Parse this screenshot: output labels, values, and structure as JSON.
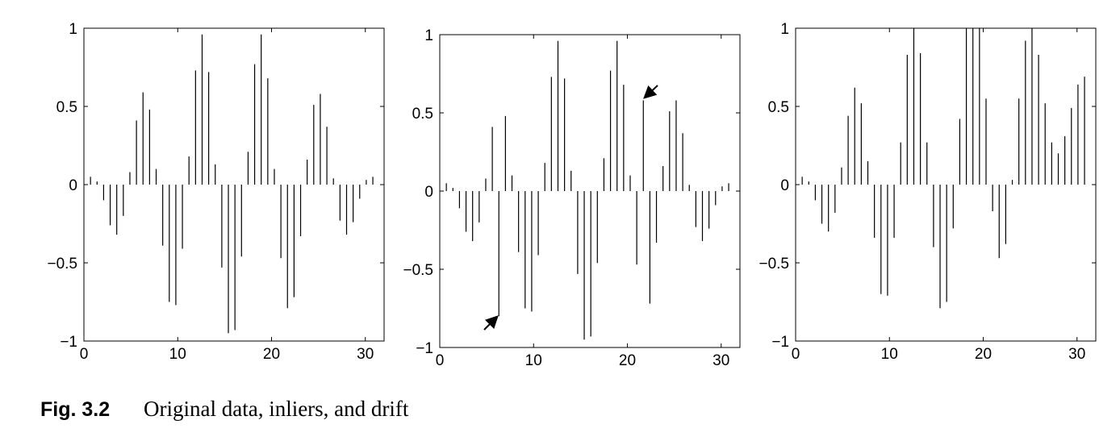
{
  "chart_data": [
    {
      "type": "stem",
      "x": [
        0.7,
        1.4,
        2.1,
        2.8,
        3.5,
        4.2,
        4.9,
        5.6,
        6.3,
        7,
        7.7,
        8.4,
        9.1,
        9.8,
        10.5,
        11.2,
        11.9,
        12.6,
        13.3,
        14,
        14.7,
        15.4,
        16.1,
        16.8,
        17.5,
        18.2,
        18.9,
        19.6,
        20.3,
        21,
        21.7,
        22.4,
        23.1,
        23.8,
        24.5,
        25.2,
        25.9,
        26.6,
        27.3,
        28,
        28.7,
        29.4,
        30.1,
        30.8
      ],
      "values": [
        0.05,
        0.02,
        -0.1,
        -0.26,
        -0.32,
        -0.2,
        0.08,
        0.41,
        0.59,
        0.48,
        0.1,
        -0.39,
        -0.75,
        -0.77,
        -0.41,
        0.18,
        0.73,
        0.96,
        0.72,
        0.13,
        -0.53,
        -0.95,
        -0.93,
        -0.46,
        0.21,
        0.77,
        0.96,
        0.68,
        0.1,
        -0.47,
        -0.79,
        -0.72,
        -0.33,
        0.16,
        0.51,
        0.58,
        0.37,
        0.04,
        -0.23,
        -0.32,
        -0.24,
        -0.09,
        0.03,
        0.05
      ],
      "color": "#000000",
      "xlim": [
        0,
        32
      ],
      "ylim": [
        -1,
        1
      ],
      "xticks": [
        0,
        10,
        20,
        30
      ],
      "yticks": [
        {
          "value": -1,
          "label": "−1"
        },
        {
          "value": -0.5,
          "label": "−0.5"
        },
        0,
        0.5,
        1
      ]
    },
    {
      "type": "stem",
      "x": [
        0.7,
        1.4,
        2.1,
        2.8,
        3.5,
        4.2,
        4.9,
        5.6,
        6.3,
        7,
        7.7,
        8.4,
        9.1,
        9.8,
        10.5,
        11.2,
        11.9,
        12.6,
        13.3,
        14,
        14.7,
        15.4,
        16.1,
        16.8,
        17.5,
        18.2,
        18.9,
        19.6,
        20.3,
        21,
        21.7,
        22.4,
        23.1,
        23.8,
        24.5,
        25.2,
        25.9,
        26.6,
        27.3,
        28,
        28.7,
        29.4,
        30.1,
        30.8
      ],
      "values": [
        0.05,
        0.02,
        -0.11,
        -0.26,
        -0.32,
        -0.2,
        0.08,
        0.41,
        -0.8,
        0.48,
        0.1,
        -0.39,
        -0.75,
        -0.77,
        -0.41,
        0.18,
        0.73,
        0.96,
        0.72,
        0.13,
        -0.53,
        -0.95,
        -0.93,
        -0.46,
        0.21,
        0.77,
        0.96,
        0.68,
        0.1,
        -0.47,
        0.58,
        -0.72,
        -0.33,
        0.16,
        0.51,
        0.58,
        0.37,
        0.04,
        -0.23,
        -0.32,
        -0.24,
        -0.09,
        0.03,
        0.05
      ],
      "color": "#000000",
      "xlim": [
        0,
        32
      ],
      "ylim": [
        -1,
        1
      ],
      "xticks": [
        0,
        10,
        20,
        30
      ],
      "yticks": [
        {
          "value": -1,
          "label": "−1"
        },
        {
          "value": -0.5,
          "label": "−0.5"
        },
        0,
        0.5,
        1
      ]
    },
    {
      "type": "stem",
      "x": [
        0.7,
        1.4,
        2.1,
        2.8,
        3.5,
        4.2,
        4.9,
        5.6,
        6.3,
        7,
        7.7,
        8.4,
        9.1,
        9.8,
        10.5,
        11.2,
        11.9,
        12.6,
        13.3,
        14,
        14.7,
        15.4,
        16.1,
        16.8,
        17.5,
        18.2,
        18.9,
        19.6,
        20.3,
        21,
        21.7,
        22.4,
        23.1,
        23.8,
        24.5,
        25.2,
        25.9,
        26.6,
        27.3,
        28,
        28.7,
        29.4,
        30.1,
        30.8
      ],
      "values": [
        0.05,
        0.02,
        -0.1,
        -0.25,
        -0.3,
        -0.18,
        0.11,
        0.44,
        0.62,
        0.52,
        0.15,
        -0.34,
        -0.7,
        -0.71,
        -0.34,
        0.27,
        0.83,
        1,
        0.84,
        0.27,
        -0.4,
        -0.79,
        -0.75,
        -0.28,
        0.42,
        1,
        1,
        1,
        0.55,
        -0.17,
        -0.47,
        -0.38,
        0.03,
        0.55,
        0.92,
        1,
        0.83,
        0.52,
        0.27,
        0.2,
        0.31,
        0.49,
        0.64,
        0.69
      ],
      "color": "#000000",
      "xlim": [
        0,
        32
      ],
      "ylim": [
        -1,
        1
      ],
      "xticks": [
        0,
        10,
        20,
        30
      ],
      "yticks": [
        {
          "value": -1,
          "label": "−1"
        },
        {
          "value": -0.5,
          "label": "−0.5"
        },
        0,
        0.5,
        1
      ]
    }
  ],
  "caption": {
    "label": "Fig. 3.2",
    "text": "Original data, inliers, and drift"
  }
}
